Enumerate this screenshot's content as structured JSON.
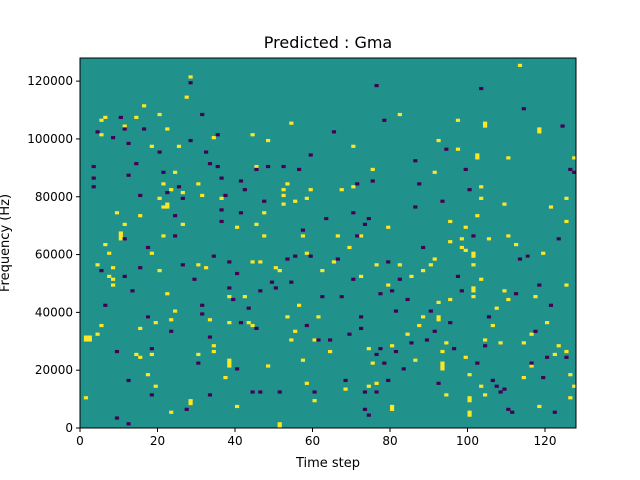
{
  "chart_data": {
    "type": "heatmap",
    "title": "Predicted : Gma",
    "xlabel": "Time step",
    "ylabel": "Frequency (Hz)",
    "xlim": [
      0,
      128
    ],
    "ylim": [
      0,
      128000
    ],
    "xticks": [
      0,
      20,
      40,
      60,
      80,
      100,
      120
    ],
    "xtick_labels": [
      "0",
      "20",
      "40",
      "60",
      "80",
      "100",
      "120"
    ],
    "yticks": [
      0,
      20000,
      40000,
      60000,
      80000,
      100000,
      120000
    ],
    "ytick_labels": [
      "0",
      "20000",
      "40000",
      "60000",
      "80000",
      "100000",
      "120000"
    ],
    "value_range": [
      -1,
      1
    ],
    "colors": {
      "background": "#21918c",
      "high": "#fde725",
      "low": "#440154"
    },
    "grid": false,
    "legend": "none",
    "frequency_bins": 128,
    "time_steps": 128,
    "cells_high": [
      [
        1,
        10
      ],
      [
        1,
        31
      ],
      [
        1,
        30
      ],
      [
        2,
        30
      ],
      [
        2,
        31
      ],
      [
        4,
        32
      ],
      [
        4,
        56
      ],
      [
        5,
        35
      ],
      [
        5,
        106
      ],
      [
        5,
        101
      ],
      [
        6,
        63
      ],
      [
        6,
        107
      ],
      [
        7,
        60
      ],
      [
        7,
        52
      ],
      [
        8,
        55
      ],
      [
        8,
        51
      ],
      [
        8,
        49
      ],
      [
        9,
        74
      ],
      [
        10,
        65
      ],
      [
        10,
        66
      ],
      [
        10,
        67
      ],
      [
        11,
        70
      ],
      [
        11,
        104
      ],
      [
        14,
        107
      ],
      [
        14,
        25
      ],
      [
        15,
        73
      ],
      [
        15,
        34
      ],
      [
        15,
        24
      ],
      [
        16,
        111
      ],
      [
        17,
        18
      ],
      [
        17,
        38
      ],
      [
        18,
        60
      ],
      [
        18,
        25
      ],
      [
        18,
        97
      ],
      [
        19,
        36
      ],
      [
        20,
        108
      ],
      [
        19,
        14
      ],
      [
        20,
        79
      ],
      [
        20,
        54
      ],
      [
        21,
        84
      ],
      [
        21,
        76
      ],
      [
        21,
        66
      ],
      [
        22,
        103
      ],
      [
        22,
        76
      ],
      [
        22,
        77
      ],
      [
        22,
        46
      ],
      [
        23,
        5
      ],
      [
        23,
        82
      ],
      [
        23,
        37
      ],
      [
        24,
        40
      ],
      [
        24,
        88
      ],
      [
        25,
        97
      ],
      [
        26,
        70
      ],
      [
        26,
        81
      ],
      [
        27,
        114
      ],
      [
        28,
        8
      ],
      [
        28,
        9
      ],
      [
        28,
        121
      ],
      [
        30,
        25
      ],
      [
        30,
        56
      ],
      [
        30,
        84
      ],
      [
        31,
        80
      ],
      [
        32,
        55
      ],
      [
        33,
        37
      ],
      [
        34,
        26
      ],
      [
        34,
        28
      ],
      [
        34,
        100
      ],
      [
        36,
        79
      ],
      [
        37,
        17
      ],
      [
        38,
        45
      ],
      [
        38,
        36
      ],
      [
        38,
        21
      ],
      [
        38,
        22
      ],
      [
        38,
        23
      ],
      [
        40,
        69
      ],
      [
        40,
        7
      ],
      [
        42,
        45
      ],
      [
        43,
        36
      ],
      [
        44,
        35
      ],
      [
        44,
        101
      ],
      [
        44,
        57
      ],
      [
        45,
        70
      ],
      [
        45,
        90
      ],
      [
        46,
        57
      ],
      [
        47,
        74
      ],
      [
        47,
        66
      ],
      [
        48,
        21
      ],
      [
        48,
        99
      ],
      [
        50,
        55
      ],
      [
        51,
        0
      ],
      [
        51,
        1
      ],
      [
        51,
        54
      ],
      [
        52,
        77
      ],
      [
        52,
        82
      ],
      [
        52,
        80
      ],
      [
        53,
        38
      ],
      [
        53,
        84
      ],
      [
        54,
        105
      ],
      [
        54,
        30
      ],
      [
        55,
        78
      ],
      [
        55,
        33
      ],
      [
        56,
        42
      ],
      [
        57,
        66
      ],
      [
        57,
        23
      ],
      [
        58,
        15
      ],
      [
        58,
        79
      ],
      [
        58,
        60
      ],
      [
        59,
        82
      ],
      [
        60,
        9
      ],
      [
        60,
        30
      ],
      [
        61,
        38
      ],
      [
        62,
        54
      ],
      [
        64,
        26
      ],
      [
        65,
        57
      ],
      [
        66,
        66
      ],
      [
        67,
        82
      ],
      [
        68,
        13
      ],
      [
        69,
        62
      ],
      [
        70,
        83
      ],
      [
        70,
        97
      ],
      [
        72,
        66
      ],
      [
        72,
        52
      ],
      [
        74,
        27
      ],
      [
        74,
        14
      ],
      [
        75,
        89
      ],
      [
        75,
        22
      ],
      [
        76,
        15
      ],
      [
        76,
        56
      ],
      [
        79,
        69
      ],
      [
        79,
        49
      ],
      [
        80,
        6
      ],
      [
        80,
        7
      ],
      [
        80,
        28
      ],
      [
        82,
        108
      ],
      [
        82,
        56
      ],
      [
        84,
        32
      ],
      [
        85,
        52
      ],
      [
        86,
        23
      ],
      [
        87,
        35
      ],
      [
        88,
        38
      ],
      [
        88,
        54
      ],
      [
        90,
        56
      ],
      [
        91,
        88
      ],
      [
        91,
        58
      ],
      [
        92,
        99
      ],
      [
        92,
        38
      ],
      [
        92,
        37
      ],
      [
        92,
        43
      ],
      [
        93,
        26
      ],
      [
        93,
        20
      ],
      [
        93,
        21
      ],
      [
        93,
        22
      ],
      [
        94,
        29
      ],
      [
        94,
        11
      ],
      [
        95,
        64
      ],
      [
        95,
        44
      ],
      [
        95,
        71
      ],
      [
        97,
        96
      ],
      [
        97,
        106
      ],
      [
        98,
        65
      ],
      [
        98,
        62
      ],
      [
        99,
        24
      ],
      [
        99,
        61
      ],
      [
        99,
        69
      ],
      [
        100,
        18
      ],
      [
        100,
        9
      ],
      [
        100,
        10
      ],
      [
        100,
        5
      ],
      [
        100,
        4
      ],
      [
        101,
        59
      ],
      [
        101,
        60
      ],
      [
        101,
        56
      ],
      [
        101,
        47
      ],
      [
        101,
        48
      ],
      [
        101,
        45
      ],
      [
        102,
        93
      ],
      [
        102,
        94
      ],
      [
        102,
        73
      ],
      [
        103,
        79
      ],
      [
        103,
        83
      ],
      [
        103,
        51
      ],
      [
        103,
        14
      ],
      [
        104,
        11
      ],
      [
        104,
        104
      ],
      [
        104,
        105
      ],
      [
        104,
        30
      ],
      [
        105,
        65
      ],
      [
        106,
        35
      ],
      [
        107,
        41
      ],
      [
        108,
        29
      ],
      [
        109,
        47
      ],
      [
        109,
        77
      ],
      [
        110,
        93
      ],
      [
        110,
        66
      ],
      [
        110,
        44
      ],
      [
        112,
        63
      ],
      [
        113,
        125
      ],
      [
        114,
        29
      ],
      [
        114,
        17
      ],
      [
        115,
        59
      ],
      [
        116,
        21
      ],
      [
        116,
        32
      ],
      [
        117,
        45
      ],
      [
        118,
        103
      ],
      [
        118,
        102
      ],
      [
        118,
        7
      ],
      [
        119,
        60
      ],
      [
        120,
        36
      ],
      [
        121,
        76
      ],
      [
        122,
        25
      ],
      [
        123,
        28
      ],
      [
        125,
        71
      ],
      [
        125,
        79
      ],
      [
        125,
        49
      ],
      [
        125,
        26
      ],
      [
        126,
        18
      ],
      [
        126,
        10
      ],
      [
        127,
        14
      ],
      [
        127,
        93
      ]
    ],
    "cells_low": [
      [
        3,
        90
      ],
      [
        3,
        86
      ],
      [
        3,
        83
      ],
      [
        4,
        102
      ],
      [
        5,
        54
      ],
      [
        6,
        42
      ],
      [
        8,
        100
      ],
      [
        9,
        26
      ],
      [
        9,
        3
      ],
      [
        10,
        107
      ],
      [
        11,
        103
      ],
      [
        11,
        52
      ],
      [
        11,
        65
      ],
      [
        12,
        16
      ],
      [
        12,
        1
      ],
      [
        12,
        98
      ],
      [
        12,
        87
      ],
      [
        13,
        47
      ],
      [
        14,
        91
      ],
      [
        15,
        80
      ],
      [
        15,
        55
      ],
      [
        16,
        103
      ],
      [
        17,
        62
      ],
      [
        17,
        38
      ],
      [
        18,
        27
      ],
      [
        18,
        11
      ],
      [
        20,
        95
      ],
      [
        21,
        88
      ],
      [
        22,
        81
      ],
      [
        23,
        33
      ],
      [
        24,
        66
      ],
      [
        24,
        73
      ],
      [
        25,
        83
      ],
      [
        26,
        56
      ],
      [
        26,
        79
      ],
      [
        27,
        6
      ],
      [
        28,
        119
      ],
      [
        28,
        99
      ],
      [
        29,
        51
      ],
      [
        30,
        22
      ],
      [
        31,
        39
      ],
      [
        31,
        42
      ],
      [
        31,
        108
      ],
      [
        32,
        95
      ],
      [
        33,
        11
      ],
      [
        33,
        31
      ],
      [
        33,
        91
      ],
      [
        34,
        59
      ],
      [
        35,
        90
      ],
      [
        35,
        101
      ],
      [
        36,
        75
      ],
      [
        36,
        71
      ],
      [
        36,
        86
      ],
      [
        37,
        80
      ],
      [
        38,
        48
      ],
      [
        38,
        57
      ],
      [
        39,
        44
      ],
      [
        40,
        53
      ],
      [
        40,
        20
      ],
      [
        41,
        85
      ],
      [
        41,
        74
      ],
      [
        41,
        36
      ],
      [
        42,
        82
      ],
      [
        43,
        41
      ],
      [
        44,
        12
      ],
      [
        45,
        34
      ],
      [
        45,
        89
      ],
      [
        46,
        12
      ],
      [
        46,
        47
      ],
      [
        47,
        78
      ],
      [
        48,
        90
      ],
      [
        49,
        50
      ],
      [
        50,
        48
      ],
      [
        51,
        12
      ],
      [
        52,
        90
      ],
      [
        53,
        58
      ],
      [
        54,
        50
      ],
      [
        55,
        59
      ],
      [
        56,
        89
      ],
      [
        57,
        68
      ],
      [
        58,
        35
      ],
      [
        59,
        94
      ],
      [
        59,
        59
      ],
      [
        60,
        12
      ],
      [
        61,
        30
      ],
      [
        62,
        45
      ],
      [
        63,
        72
      ],
      [
        64,
        30
      ],
      [
        65,
        102
      ],
      [
        66,
        58
      ],
      [
        67,
        45
      ],
      [
        68,
        16
      ],
      [
        69,
        32
      ],
      [
        70,
        74
      ],
      [
        70,
        51
      ],
      [
        71,
        84
      ],
      [
        71,
        66
      ],
      [
        72,
        34
      ],
      [
        72,
        38
      ],
      [
        73,
        70
      ],
      [
        73,
        6
      ],
      [
        73,
        12
      ],
      [
        74,
        4
      ],
      [
        74,
        72
      ],
      [
        75,
        85
      ],
      [
        76,
        12
      ],
      [
        76,
        25
      ],
      [
        76,
        118
      ],
      [
        77,
        46
      ],
      [
        77,
        27
      ],
      [
        78,
        106
      ],
      [
        78,
        22
      ],
      [
        79,
        57
      ],
      [
        79,
        16
      ],
      [
        80,
        47
      ],
      [
        81,
        26
      ],
      [
        81,
        40
      ],
      [
        82,
        51
      ],
      [
        83,
        20
      ],
      [
        84,
        44
      ],
      [
        85,
        29
      ],
      [
        86,
        76
      ],
      [
        86,
        92
      ],
      [
        87,
        84
      ],
      [
        88,
        62
      ],
      [
        89,
        30
      ],
      [
        90,
        40
      ],
      [
        91,
        33
      ],
      [
        92,
        15
      ],
      [
        93,
        78
      ],
      [
        94,
        96
      ],
      [
        95,
        36
      ],
      [
        96,
        27
      ],
      [
        97,
        52
      ],
      [
        98,
        47
      ],
      [
        99,
        89
      ],
      [
        100,
        82
      ],
      [
        101,
        66
      ],
      [
        102,
        22
      ],
      [
        103,
        117
      ],
      [
        104,
        28
      ],
      [
        105,
        38
      ],
      [
        106,
        16
      ],
      [
        107,
        14
      ],
      [
        108,
        12
      ],
      [
        109,
        13
      ],
      [
        110,
        6
      ],
      [
        111,
        5
      ],
      [
        112,
        46
      ],
      [
        113,
        58
      ],
      [
        114,
        110
      ],
      [
        115,
        59
      ],
      [
        116,
        22
      ],
      [
        117,
        33
      ],
      [
        118,
        49
      ],
      [
        119,
        17
      ],
      [
        120,
        24
      ],
      [
        121,
        42
      ],
      [
        122,
        5
      ],
      [
        123,
        65
      ],
      [
        124,
        104
      ],
      [
        125,
        24
      ],
      [
        126,
        89
      ],
      [
        127,
        88
      ]
    ]
  }
}
